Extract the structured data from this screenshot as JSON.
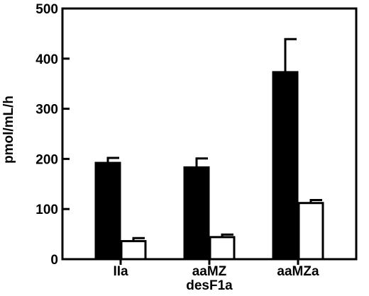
{
  "chart_data": {
    "type": "bar",
    "title": "",
    "xlabel": "",
    "ylabel": "pmol/mL/h",
    "ylim": [
      0,
      500
    ],
    "yticks": [
      "0",
      "100",
      "200",
      "300",
      "400",
      "500"
    ],
    "categories": [
      [
        "IIa"
      ],
      [
        "aaMZ",
        "desF1a"
      ],
      [
        "aaMZa"
      ]
    ],
    "series": [
      {
        "color": "#000000",
        "values": [
          192,
          183,
          373
        ],
        "errors": [
          10,
          18,
          66
        ]
      },
      {
        "color": "#ffffff",
        "values": [
          36,
          44,
          112
        ],
        "errors": [
          6,
          5,
          6
        ]
      }
    ],
    "grid": false,
    "legend": "none"
  }
}
